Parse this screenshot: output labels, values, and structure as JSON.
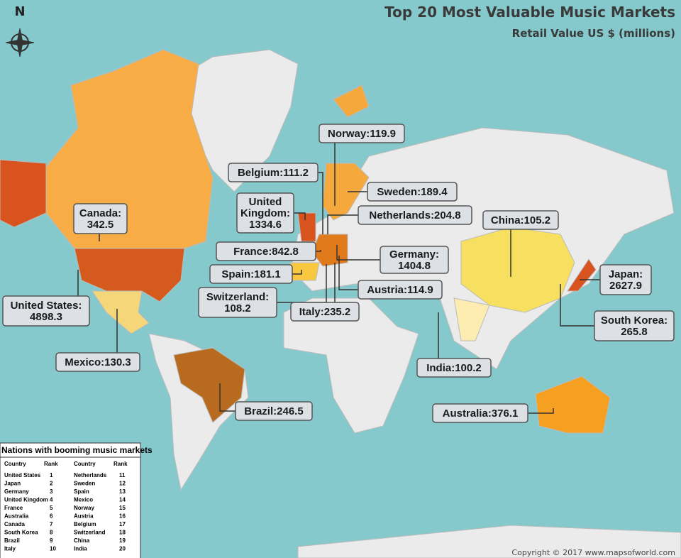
{
  "title": "Top 20 Most Valuable Music Markets",
  "subtitle": "Retail Value US $ (millions)",
  "north": "N",
  "labels": [
    {
      "lines": [
        "Norway:119.9"
      ]
    },
    {
      "lines": [
        "Belgium:111.2"
      ]
    },
    {
      "lines": [
        "Sweden:189.4"
      ]
    },
    {
      "lines": [
        "United",
        "Kingdom:",
        "1334.6"
      ]
    },
    {
      "lines": [
        "Netherlands:204.8"
      ]
    },
    {
      "lines": [
        "China:105.2"
      ]
    },
    {
      "lines": [
        "Canada:",
        "342.5"
      ]
    },
    {
      "lines": [
        "France:842.8"
      ]
    },
    {
      "lines": [
        "Germany:",
        "1404.8"
      ]
    },
    {
      "lines": [
        "Spain:181.1"
      ]
    },
    {
      "lines": [
        "Japan:",
        "2627.9"
      ]
    },
    {
      "lines": [
        "Switzerland:",
        "108.2"
      ]
    },
    {
      "lines": [
        "Austria:114.9"
      ]
    },
    {
      "lines": [
        "United States:",
        "4898.3"
      ]
    },
    {
      "lines": [
        "Italy:235.2"
      ]
    },
    {
      "lines": [
        "South Korea:",
        "265.8"
      ]
    },
    {
      "lines": [
        "Mexico:130.3"
      ]
    },
    {
      "lines": [
        "India:100.2"
      ]
    },
    {
      "lines": [
        "Brazil:246.5"
      ]
    },
    {
      "lines": [
        "Australia:376.1"
      ]
    }
  ],
  "table": {
    "title": "Nations with booming music markets",
    "headers": [
      "Country",
      "Rank",
      "Country",
      "Rank"
    ],
    "rows": [
      [
        "United States",
        1,
        "Netherlands",
        11
      ],
      [
        "Japan",
        2,
        "Sweden",
        12
      ],
      [
        "Germany",
        3,
        "Spain",
        13
      ],
      [
        "United Kingdom",
        4,
        "Mexico",
        14
      ],
      [
        "France",
        5,
        "Norway",
        15
      ],
      [
        "Australia",
        6,
        "Austria",
        16
      ],
      [
        "Canada",
        7,
        "Belgium",
        17
      ],
      [
        "South Korea",
        8,
        "Switzerland",
        18
      ],
      [
        "Brazil",
        9,
        "China",
        19
      ],
      [
        "Italy",
        10,
        "India",
        20
      ]
    ]
  },
  "copyright": "Copyright © 2017 www.mapsofworld.com"
}
